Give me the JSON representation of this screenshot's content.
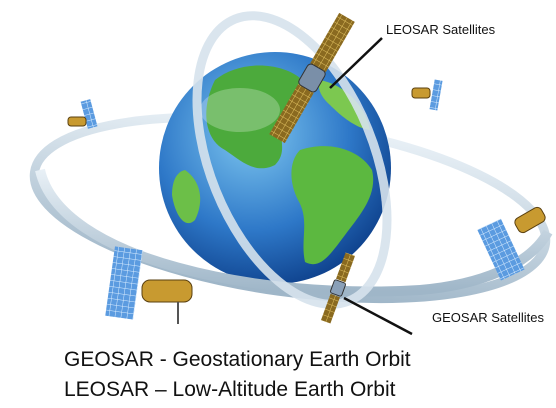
{
  "labels": {
    "leosar_satellites": "LEOSAR Satellites",
    "geosar_satellites": "GEOSAR Satellites"
  },
  "legend": {
    "lines": [
      "GEOSAR - Geostationary Earth Orbit",
      "LEOSAR – Low-Altitude Earth Orbit"
    ]
  }
}
